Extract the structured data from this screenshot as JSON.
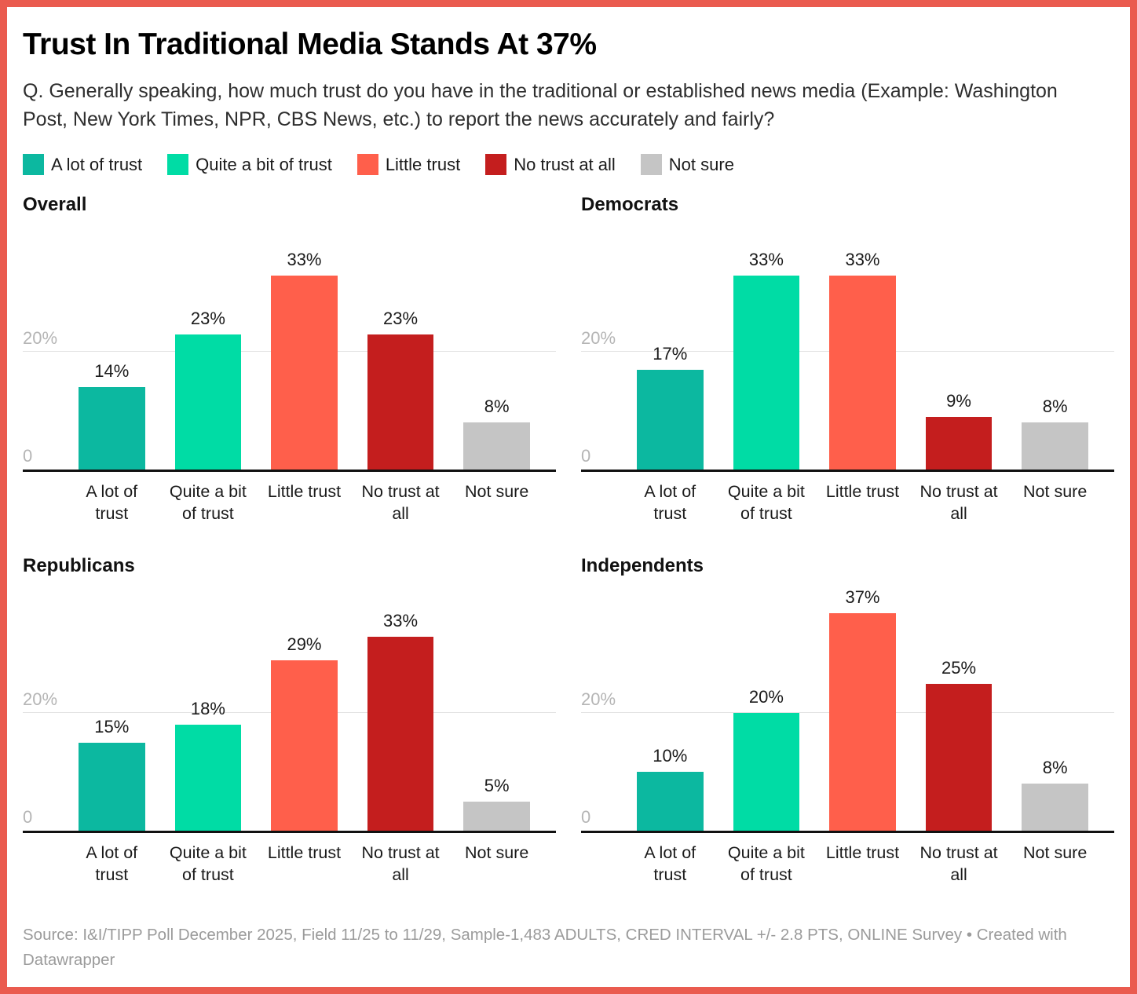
{
  "header": {
    "title": "Trust In Traditional Media Stands At 37%",
    "subtitle": "Q. Generally speaking, how much trust do you have in the traditional or established news media (Example: Washington Post, New York Times, NPR, CBS News, etc.) to report the news accurately and fairly?"
  },
  "chart_data": {
    "type": "bar",
    "layout": "2x2 small multiples",
    "categories": [
      "A lot of trust",
      "Quite a bit of trust",
      "Little trust",
      "No trust at all",
      "Not sure"
    ],
    "series": [
      {
        "name": "Overall",
        "values": [
          14,
          23,
          33,
          23,
          8
        ]
      },
      {
        "name": "Democrats",
        "values": [
          17,
          33,
          33,
          9,
          8
        ]
      },
      {
        "name": "Republicans",
        "values": [
          15,
          18,
          29,
          33,
          5
        ]
      },
      {
        "name": "Independents",
        "values": [
          10,
          20,
          37,
          25,
          8
        ]
      }
    ],
    "colors": [
      "#0CB8A0",
      "#00DCA5",
      "#FF5F4B",
      "#C41E1E",
      "#C5C5C5"
    ],
    "value_suffix": "%",
    "ylim": [
      0,
      40
    ],
    "yticks": [
      {
        "value": 20,
        "label": "20%",
        "gridline": true
      },
      {
        "value": 0,
        "label": "0",
        "gridline": false
      }
    ],
    "grid": true,
    "legend_position": "top"
  },
  "footer": {
    "source": "Source: I&I/TIPP Poll December 2025, Field 11/25 to 11/29, Sample-1,483 ADULTS, CRED INTERVAL +/- 2.8 PTS, ONLINE Survey • Created with Datawrapper"
  },
  "colors": {
    "frame_border": "#EA5B4F",
    "gridline": "#E3E3E3",
    "axis_line": "#111111",
    "tick_label": "#B5B5B5",
    "text_primary": "#1A1A1A",
    "subtitle_text": "#2E2E2E",
    "source_text": "#9B9B9B"
  }
}
